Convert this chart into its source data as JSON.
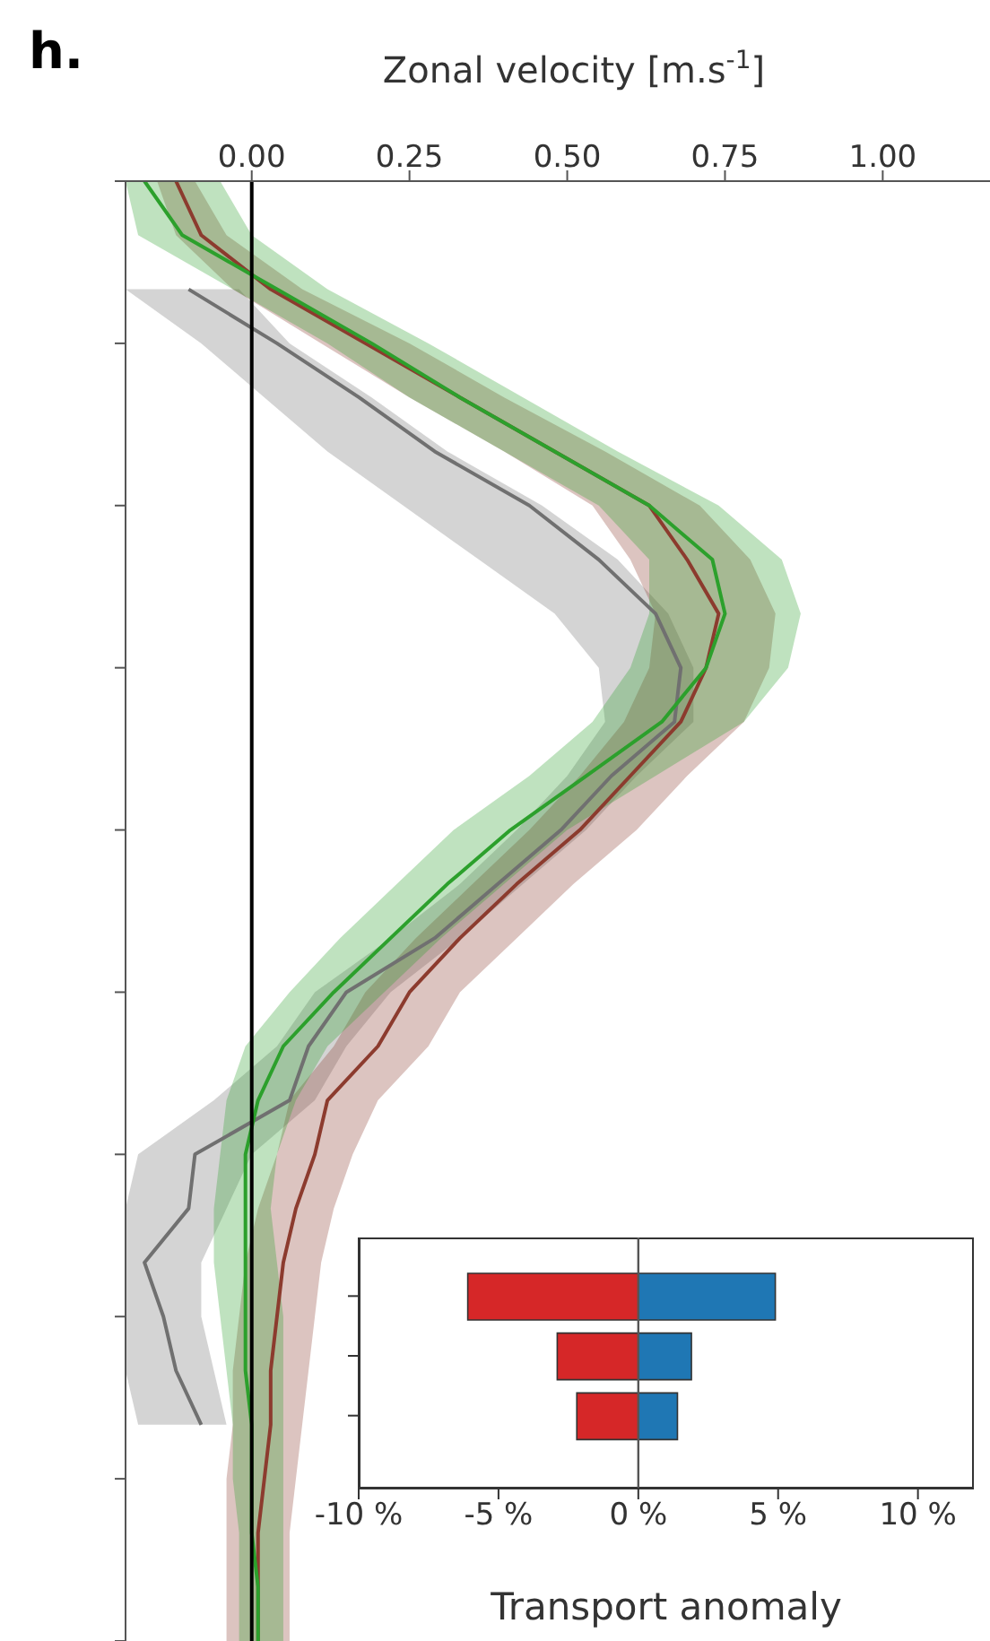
{
  "chart_data": [
    {
      "type": "line",
      "orientation": "horizontal",
      "title": "h.",
      "xlabel": "Zonal velocity [m.s$^{-1}$]",
      "categories": [
        null,
        null,
        null,
        null,
        null,
        null,
        null,
        null,
        null,
        null,
        null,
        null,
        null,
        null,
        null,
        null,
        null,
        null,
        null,
        null,
        null,
        null,
        null,
        null,
        null,
        null,
        null,
        null
      ],
      "series": [
        {
          "color": "#707070",
          "values": [
            null,
            null,
            -0.1,
            0.04,
            0.17,
            0.29,
            0.44,
            0.55,
            0.64,
            0.68,
            0.67,
            0.57,
            0.49,
            0.39,
            0.29,
            0.15,
            0.09,
            0.06,
            -0.09,
            -0.1,
            -0.17,
            -0.14,
            -0.12,
            -0.08,
            null,
            null,
            null,
            null
          ],
          "lower": [
            null,
            null,
            -0.2,
            -0.08,
            0.02,
            0.12,
            0.24,
            0.36,
            0.48,
            0.55,
            0.56,
            0.5,
            0.42,
            0.33,
            0.22,
            0.1,
            0.04,
            -0.06,
            -0.18,
            -0.2,
            -0.2,
            -0.2,
            -0.2,
            -0.18,
            null,
            null,
            null,
            null
          ],
          "upper": [
            null,
            null,
            -0.02,
            0.06,
            0.19,
            0.31,
            0.46,
            0.58,
            0.66,
            0.7,
            0.7,
            0.61,
            0.53,
            0.43,
            0.33,
            0.22,
            0.15,
            0.1,
            0.0,
            -0.04,
            -0.08,
            -0.08,
            -0.06,
            -0.04,
            null,
            null,
            null,
            null
          ]
        },
        {
          "color": "#8c3b2e",
          "values": [
            -0.12,
            -0.08,
            0.03,
            0.18,
            0.33,
            0.48,
            0.63,
            0.69,
            0.74,
            0.72,
            0.68,
            0.6,
            0.52,
            0.42,
            0.33,
            0.25,
            0.2,
            0.12,
            0.1,
            0.07,
            0.05,
            0.04,
            0.03,
            0.03,
            0.02,
            0.01,
            0.01,
            0.01
          ],
          "lower": [
            -0.15,
            -0.12,
            -0.03,
            0.11,
            0.25,
            0.4,
            0.54,
            0.6,
            0.64,
            0.63,
            0.59,
            0.52,
            0.44,
            0.35,
            0.26,
            0.18,
            0.13,
            0.06,
            0.04,
            0.01,
            -0.01,
            -0.02,
            -0.03,
            -0.03,
            -0.04,
            -0.04,
            -0.04,
            -0.04
          ],
          "upper": [
            -0.09,
            -0.04,
            0.08,
            0.25,
            0.4,
            0.56,
            0.71,
            0.79,
            0.83,
            0.82,
            0.78,
            0.69,
            0.61,
            0.51,
            0.42,
            0.33,
            0.28,
            0.2,
            0.16,
            0.13,
            0.11,
            0.1,
            0.09,
            0.08,
            0.07,
            0.06,
            0.06,
            0.06
          ]
        },
        {
          "color": "#2ca02c",
          "values": [
            -0.17,
            -0.11,
            0.04,
            0.19,
            0.33,
            0.48,
            0.63,
            0.73,
            0.75,
            0.72,
            0.65,
            0.53,
            0.41,
            0.31,
            0.22,
            0.13,
            0.05,
            0.01,
            -0.01,
            -0.01,
            -0.01,
            -0.01,
            -0.01,
            0,
            0,
            0,
            0.01,
            0.01
          ],
          "lower": [
            -0.2,
            -0.18,
            -0.03,
            0.12,
            0.25,
            0.4,
            0.55,
            0.63,
            0.63,
            0.6,
            0.54,
            0.44,
            0.32,
            0.23,
            0.14,
            0.06,
            -0.01,
            -0.04,
            -0.05,
            -0.06,
            -0.06,
            -0.05,
            -0.04,
            -0.03,
            -0.03,
            -0.02,
            -0.02,
            -0.02
          ],
          "upper": [
            -0.05,
            0.0,
            0.12,
            0.28,
            0.43,
            0.58,
            0.74,
            0.84,
            0.87,
            0.85,
            0.78,
            0.64,
            0.5,
            0.4,
            0.3,
            0.21,
            0.12,
            0.07,
            0.04,
            0.03,
            0.04,
            0.05,
            0.05,
            0.05,
            0.05,
            0.05,
            0.05,
            0.05
          ]
        }
      ],
      "xlim": [
        -0.2,
        1.17
      ],
      "xticks": [
        {
          "value": 0,
          "label": "0.00"
        },
        {
          "value": 0.25,
          "label": "0.25"
        },
        {
          "value": 0.5,
          "label": "0.50"
        },
        {
          "value": 0.75,
          "label": "0.75"
        },
        {
          "value": 1,
          "label": "1.00"
        }
      ],
      "ref_lines": [
        {
          "axis": "x",
          "value": 0,
          "color": "#000000"
        }
      ],
      "tick_labels": "x",
      "grid": false,
      "legend": false,
      "marker": "none",
      "line_style": "solid"
    },
    {
      "type": "bar",
      "orientation": "horizontal",
      "stacked": true,
      "xlabel": "Transport anomaly",
      "categories": [
        null,
        null,
        null
      ],
      "series": [
        {
          "color": "#d62728",
          "values": [
            -6.1,
            -2.9,
            -2.2
          ]
        },
        {
          "color": "#1f77b4",
          "values": [
            4.9,
            1.9,
            1.4
          ]
        }
      ],
      "xlim": [
        -10,
        12
      ],
      "xticks": [
        {
          "value": -10,
          "label": "-10 %"
        },
        {
          "value": -5,
          "label": "-5 %"
        },
        {
          "value": 0,
          "label": "0 %"
        },
        {
          "value": 5,
          "label": "5 %"
        },
        {
          "value": 10,
          "label": "10 %"
        }
      ],
      "ref_lines": [
        {
          "axis": "x",
          "value": 0,
          "color": "#555555"
        }
      ],
      "tick_labels": "x",
      "grid": false,
      "legend": false
    }
  ]
}
